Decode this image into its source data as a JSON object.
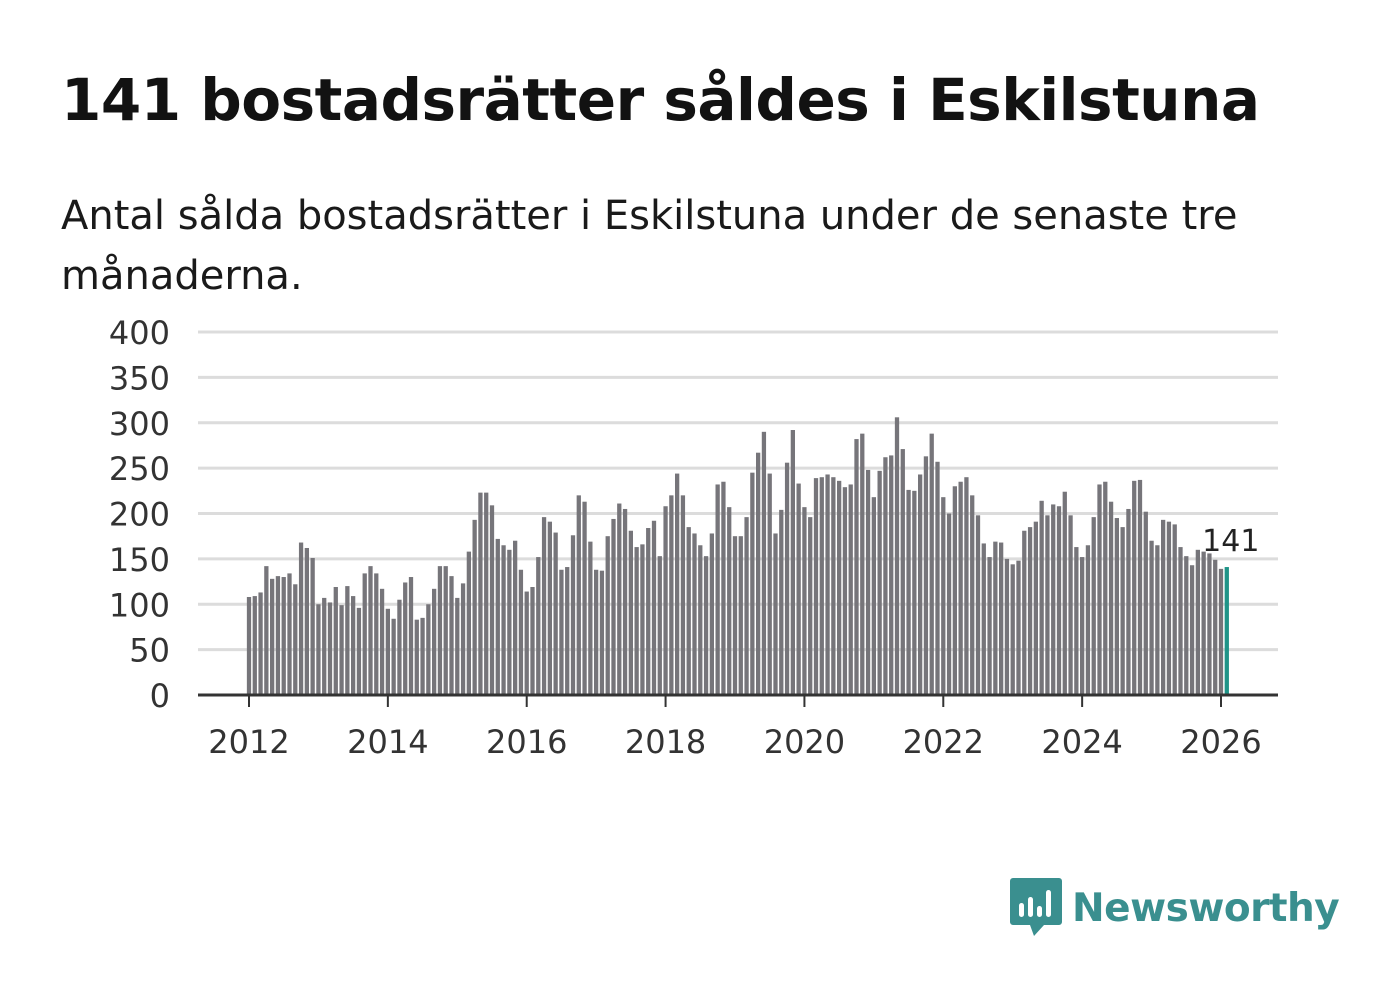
{
  "header": {
    "title": "141 bostadsrätter såldes i Eskilstuna",
    "subtitle": "Antal sålda bostadsrätter i Eskilstuna under de senaste tre månaderna."
  },
  "brand": {
    "name": "Newsworthy",
    "color": "#3a8f8f"
  },
  "chart_data": {
    "type": "bar",
    "title": "",
    "xlabel": "",
    "ylabel": "",
    "ylim": [
      0,
      400
    ],
    "yticks": [
      0,
      50,
      100,
      150,
      200,
      250,
      300,
      350,
      400
    ],
    "xticks": [
      2012,
      2014,
      2016,
      2018,
      2020,
      2022,
      2024,
      2026
    ],
    "start": {
      "year": 2012,
      "month": 1
    },
    "bar_color": "#76757a",
    "highlight_color": "#1f9488",
    "highlight_label": "141",
    "grid": true,
    "values": [
      108,
      109,
      113,
      142,
      128,
      131,
      130,
      134,
      122,
      168,
      162,
      151,
      100,
      107,
      102,
      119,
      99,
      120,
      109,
      96,
      134,
      142,
      134,
      117,
      95,
      84,
      105,
      124,
      130,
      83,
      85,
      100,
      117,
      142,
      142,
      131,
      107,
      123,
      158,
      193,
      223,
      223,
      209,
      172,
      165,
      160,
      170,
      138,
      114,
      119,
      152,
      196,
      191,
      179,
      138,
      141,
      176,
      220,
      213,
      169,
      138,
      137,
      175,
      194,
      211,
      205,
      181,
      163,
      166,
      184,
      192,
      153,
      208,
      220,
      244,
      220,
      185,
      178,
      165,
      153,
      178,
      232,
      235,
      207,
      175,
      175,
      196,
      245,
      267,
      290,
      244,
      178,
      204,
      256,
      292,
      233,
      207,
      196,
      239,
      240,
      243,
      240,
      236,
      229,
      232,
      282,
      288,
      248,
      218,
      247,
      262,
      264,
      306,
      271,
      226,
      225,
      243,
      263,
      288,
      257,
      218,
      200,
      230,
      235,
      240,
      220,
      198,
      167,
      152,
      169,
      168,
      150,
      144,
      148,
      181,
      185,
      191,
      214,
      198,
      210,
      208,
      224,
      198,
      163,
      152,
      165,
      196,
      232,
      235,
      213,
      195,
      185,
      205,
      236,
      237,
      202,
      170,
      165,
      193,
      191,
      188,
      163,
      153,
      143,
      160,
      158,
      156,
      149,
      139,
      141
    ]
  }
}
